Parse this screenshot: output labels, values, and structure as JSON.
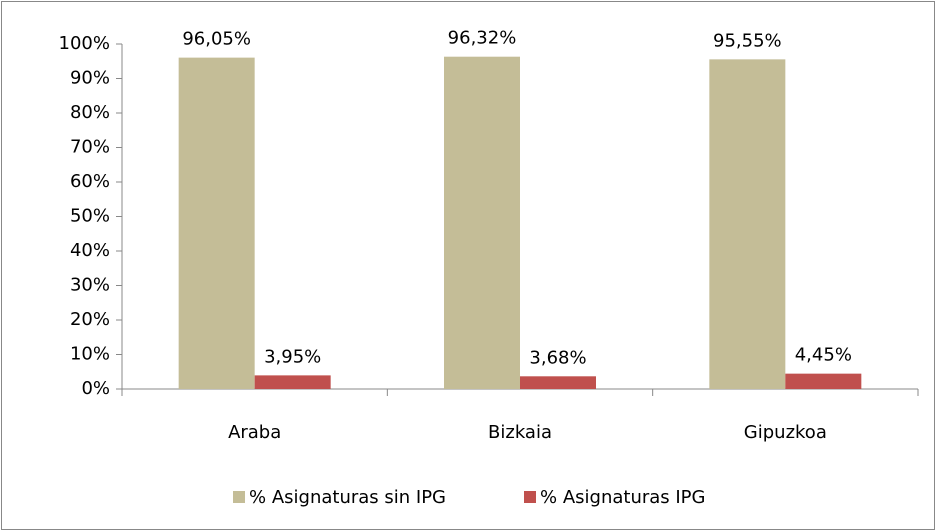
{
  "chart_data": {
    "type": "bar",
    "categories": [
      "Araba",
      "Bizkaia",
      "Gipuzkoa"
    ],
    "series": [
      {
        "name": "% Asignaturas sin IPG",
        "color": "#c4bd97",
        "values": [
          96.05,
          96.32,
          95.55
        ],
        "value_labels": [
          "96,05%",
          "96,32%",
          "95,55%"
        ]
      },
      {
        "name": "% Asignaturas IPG",
        "color": "#c0504d",
        "values": [
          3.95,
          3.68,
          4.45
        ],
        "value_labels": [
          "3,95%",
          "3,68%",
          "4,45%"
        ]
      }
    ],
    "ylim": [
      0,
      100
    ],
    "yticks": [
      {
        "value": 0,
        "label": "0%"
      },
      {
        "value": 10,
        "label": "10%"
      },
      {
        "value": 20,
        "label": "20%"
      },
      {
        "value": 30,
        "label": "30%"
      },
      {
        "value": 40,
        "label": "40%"
      },
      {
        "value": 50,
        "label": "50%"
      },
      {
        "value": 60,
        "label": "60%"
      },
      {
        "value": 70,
        "label": "70%"
      },
      {
        "value": 80,
        "label": "80%"
      },
      {
        "value": 90,
        "label": "90%"
      },
      {
        "value": 100,
        "label": "100%"
      }
    ],
    "grid": false,
    "legend": "bottom"
  }
}
